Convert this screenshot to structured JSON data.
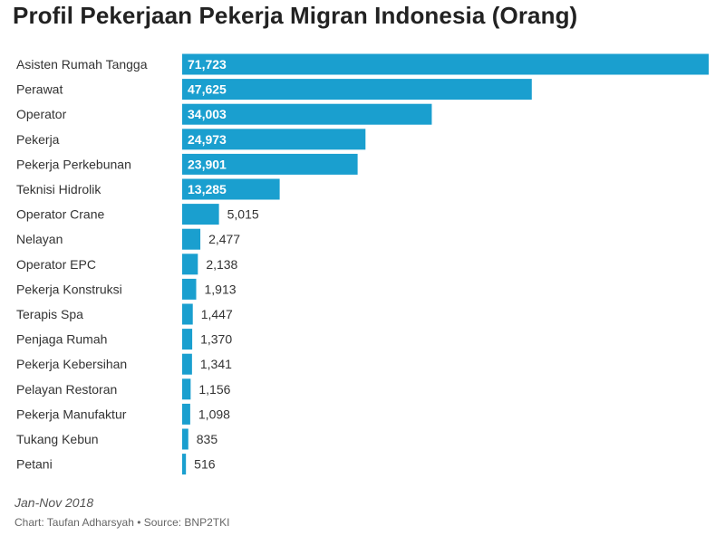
{
  "chart_data": {
    "type": "bar",
    "orientation": "horizontal",
    "title": "Profil Pekerjaan Pekerja Migran Indonesia (Orang)",
    "categories": [
      "Asisten Rumah Tangga",
      "Perawat",
      "Operator",
      "Pekerja",
      "Pekerja Perkebunan",
      "Teknisi Hidrolik",
      "Operator Crane",
      "Nelayan",
      "Operator EPC",
      "Pekerja Konstruksi",
      "Terapis Spa",
      "Penjaga Rumah",
      "Pekerja Kebersihan",
      "Pelayan Restoran",
      "Pekerja Manufaktur",
      "Tukang Kebun",
      "Petani"
    ],
    "values": [
      71723,
      47625,
      34003,
      24973,
      23901,
      13285,
      5015,
      2477,
      2138,
      1913,
      1447,
      1370,
      1341,
      1156,
      1098,
      835,
      516
    ],
    "value_labels": [
      "71,723",
      "47,625",
      "34,003",
      "24,973",
      "23,901",
      "13,285",
      "5,015",
      "2,477",
      "2,138",
      "1,913",
      "1,447",
      "1,370",
      "1,341",
      "1,156",
      "1,098",
      "835",
      "516"
    ],
    "bar_color": "#1a9fcf",
    "grid": false,
    "legend": "none"
  },
  "footnote": "Jan-Nov 2018",
  "credit": "Chart: Taufan Adharsyah • Source: BNP2TKI"
}
